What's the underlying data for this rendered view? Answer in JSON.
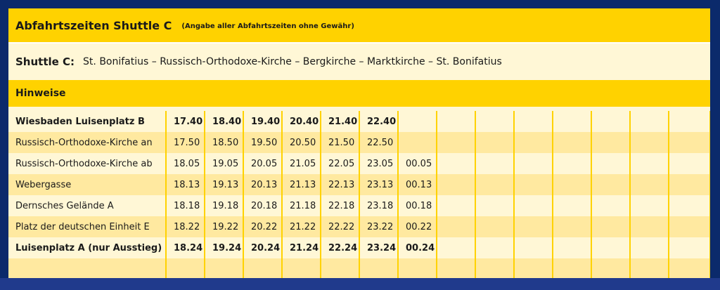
{
  "header": {
    "title": "Abfahrtszeiten Shuttle C",
    "note": "(Angabe aller Abfahrtszeiten ohne Gewähr)"
  },
  "route": {
    "label": "Shuttle C:",
    "text": "St. Bonifatius  –  Russisch-Orthodoxe-Kirche  –  Bergkirche  –  Marktkirche  –  St. Bonifatius"
  },
  "hint": {
    "label": "Hinweise"
  },
  "schedule": {
    "rows": [
      {
        "stop": "Wiesbaden Luisenplatz B",
        "times": [
          "17.40",
          "18.40",
          "19.40",
          "20.40",
          "21.40",
          "22.40",
          ""
        ],
        "bold": true
      },
      {
        "stop": "Russisch-Orthodoxe-Kirche an",
        "times": [
          "17.50",
          "18.50",
          "19.50",
          "20.50",
          "21.50",
          "22.50",
          ""
        ],
        "bold": false
      },
      {
        "stop": "Russisch-Orthodoxe-Kirche ab",
        "times": [
          "18.05",
          "19.05",
          "20.05",
          "21.05",
          "22.05",
          "23.05",
          "00.05"
        ],
        "bold": false
      },
      {
        "stop": "Webergasse",
        "times": [
          "18.13",
          "19.13",
          "20.13",
          "21.13",
          "22.13",
          "23.13",
          "00.13"
        ],
        "bold": false
      },
      {
        "stop": "Dernsches Gelände A",
        "times": [
          "18.18",
          "19.18",
          "20.18",
          "21.18",
          "22.18",
          "23.18",
          "00.18"
        ],
        "bold": false
      },
      {
        "stop": "Platz der deutschen Einheit E",
        "times": [
          "18.22",
          "19.22",
          "20.22",
          "21.22",
          "22.22",
          "23.22",
          "00.22"
        ],
        "bold": false
      },
      {
        "stop": "Luisenplatz A (nur Ausstieg)",
        "times": [
          "18.24",
          "19.24",
          "20.24",
          "21.24",
          "22.24",
          "23.24",
          "00.24"
        ],
        "bold": true
      },
      {
        "stop": "",
        "times": [
          "",
          "",
          "",
          "",
          "",
          "",
          ""
        ],
        "bold": false
      }
    ]
  },
  "colors": {
    "accent": "#ffd200",
    "light_row": "#fff7d6",
    "dark_row": "#ffe9a0",
    "page_background": "#0b2a6b"
  }
}
